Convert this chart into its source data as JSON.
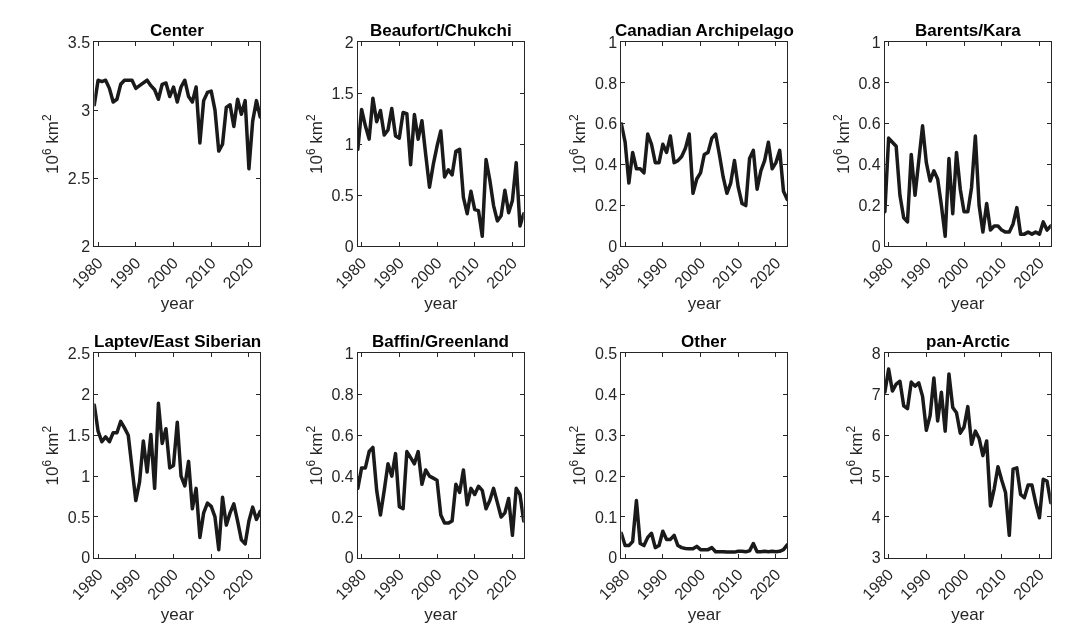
{
  "chart_data": [
    {
      "type": "line",
      "title": "Center",
      "xlabel": "year",
      "ylabel": "10$^{6}$ km$^{2}$",
      "color": "#1a1a1a",
      "xlim": [
        1979,
        2023
      ],
      "xticks": [
        1980,
        1990,
        2000,
        2010,
        2020
      ],
      "ylim": [
        2,
        3.5
      ],
      "yticks": [
        2,
        2.5,
        3,
        3.5
      ],
      "grid": false,
      "x": [
        1979,
        1980,
        1981,
        1982,
        1983,
        1984,
        1985,
        1986,
        1987,
        1988,
        1989,
        1990,
        1991,
        1992,
        1993,
        1994,
        1995,
        1996,
        1997,
        1998,
        1999,
        2000,
        2001,
        2002,
        2003,
        2004,
        2005,
        2006,
        2007,
        2008,
        2009,
        2010,
        2011,
        2012,
        2013,
        2014,
        2015,
        2016,
        2017,
        2018,
        2019,
        2020,
        2021,
        2022,
        2023
      ],
      "values": [
        3.04,
        3.22,
        3.21,
        3.22,
        3.16,
        3.06,
        3.08,
        3.19,
        3.22,
        3.22,
        3.22,
        3.16,
        3.18,
        3.2,
        3.22,
        3.18,
        3.15,
        3.08,
        3.19,
        3.2,
        3.1,
        3.17,
        3.06,
        3.17,
        3.22,
        3.1,
        3.06,
        3.17,
        2.76,
        3.07,
        3.13,
        3.14,
        3.0,
        2.7,
        2.75,
        3.02,
        3.04,
        2.88,
        3.08,
        2.97,
        3.07,
        2.57,
        2.92,
        3.07,
        2.95
      ]
    },
    {
      "type": "line",
      "title": "Beaufort/Chukchi",
      "xlabel": "year",
      "ylabel": "10$^{6}$ km$^{2}$",
      "color": "#1a1a1a",
      "xlim": [
        1979,
        2023
      ],
      "xticks": [
        1980,
        1990,
        2000,
        2010,
        2020
      ],
      "ylim": [
        0,
        2
      ],
      "yticks": [
        0,
        0.5,
        1,
        1.5,
        2
      ],
      "grid": false,
      "x": [
        1979,
        1980,
        1981,
        1982,
        1983,
        1984,
        1985,
        1986,
        1987,
        1988,
        1989,
        1990,
        1991,
        1992,
        1993,
        1994,
        1995,
        1996,
        1997,
        1998,
        1999,
        2000,
        2001,
        2002,
        2003,
        2004,
        2005,
        2006,
        2007,
        2008,
        2009,
        2010,
        2011,
        2012,
        2013,
        2014,
        2015,
        2016,
        2017,
        2018,
        2019,
        2020,
        2021,
        2022,
        2023
      ],
      "values": [
        0.95,
        1.34,
        1.18,
        1.05,
        1.45,
        1.22,
        1.33,
        1.09,
        1.14,
        1.35,
        1.08,
        1.06,
        1.31,
        1.3,
        0.8,
        1.29,
        1.05,
        1.23,
        0.9,
        0.58,
        0.8,
        0.98,
        1.13,
        0.68,
        0.75,
        0.7,
        0.93,
        0.95,
        0.48,
        0.32,
        0.54,
        0.36,
        0.35,
        0.1,
        0.85,
        0.65,
        0.4,
        0.25,
        0.3,
        0.55,
        0.33,
        0.45,
        0.82,
        0.2,
        0.32
      ]
    },
    {
      "type": "line",
      "title": "Canadian Archipelago",
      "xlabel": "year",
      "ylabel": "10$^{6}$ km$^{2}$",
      "color": "#1a1a1a",
      "xlim": [
        1979,
        2023
      ],
      "xticks": [
        1980,
        1990,
        2000,
        2010,
        2020
      ],
      "ylim": [
        0,
        1
      ],
      "yticks": [
        0,
        0.2,
        0.4,
        0.6,
        0.8,
        1
      ],
      "grid": false,
      "x": [
        1979,
        1980,
        1981,
        1982,
        1983,
        1984,
        1985,
        1986,
        1987,
        1988,
        1989,
        1990,
        1991,
        1992,
        1993,
        1994,
        1995,
        1996,
        1997,
        1998,
        1999,
        2000,
        2001,
        2002,
        2003,
        2004,
        2005,
        2006,
        2007,
        2008,
        2009,
        2010,
        2011,
        2012,
        2013,
        2014,
        2015,
        2016,
        2017,
        2018,
        2019,
        2020,
        2021,
        2022,
        2023
      ],
      "values": [
        0.6,
        0.51,
        0.31,
        0.46,
        0.38,
        0.38,
        0.36,
        0.55,
        0.5,
        0.41,
        0.41,
        0.5,
        0.46,
        0.54,
        0.41,
        0.42,
        0.44,
        0.48,
        0.55,
        0.26,
        0.33,
        0.36,
        0.45,
        0.46,
        0.53,
        0.55,
        0.45,
        0.34,
        0.26,
        0.31,
        0.42,
        0.29,
        0.21,
        0.2,
        0.43,
        0.47,
        0.28,
        0.37,
        0.42,
        0.51,
        0.38,
        0.41,
        0.47,
        0.27,
        0.23
      ]
    },
    {
      "type": "line",
      "title": "Barents/Kara",
      "xlabel": "year",
      "ylabel": "10$^{6}$ km$^{2}$",
      "color": "#1a1a1a",
      "xlim": [
        1979,
        2023
      ],
      "xticks": [
        1980,
        1990,
        2000,
        2010,
        2020
      ],
      "ylim": [
        0,
        1
      ],
      "yticks": [
        0,
        0.2,
        0.4,
        0.6,
        0.8,
        1
      ],
      "grid": false,
      "x": [
        1979,
        1980,
        1981,
        1982,
        1983,
        1984,
        1985,
        1986,
        1987,
        1988,
        1989,
        1990,
        1991,
        1992,
        1993,
        1994,
        1995,
        1996,
        1997,
        1998,
        1999,
        2000,
        2001,
        2002,
        2003,
        2004,
        2005,
        2006,
        2007,
        2008,
        2009,
        2010,
        2011,
        2012,
        2013,
        2014,
        2015,
        2016,
        2017,
        2018,
        2019,
        2020,
        2021,
        2022,
        2023
      ],
      "values": [
        0.17,
        0.53,
        0.51,
        0.49,
        0.25,
        0.14,
        0.12,
        0.45,
        0.25,
        0.42,
        0.59,
        0.41,
        0.32,
        0.37,
        0.33,
        0.2,
        0.05,
        0.43,
        0.16,
        0.46,
        0.28,
        0.17,
        0.17,
        0.29,
        0.54,
        0.2,
        0.07,
        0.21,
        0.08,
        0.1,
        0.1,
        0.08,
        0.07,
        0.07,
        0.11,
        0.19,
        0.06,
        0.06,
        0.07,
        0.06,
        0.07,
        0.06,
        0.12,
        0.08,
        0.1
      ]
    },
    {
      "type": "line",
      "title": "Laptev/East Siberian",
      "xlabel": "year",
      "ylabel": "10$^{6}$ km$^{2}$",
      "color": "#1a1a1a",
      "xlim": [
        1979,
        2023
      ],
      "xticks": [
        1980,
        1990,
        2000,
        2010,
        2020
      ],
      "ylim": [
        0,
        2.5
      ],
      "yticks": [
        0,
        0.5,
        1,
        1.5,
        2,
        2.5
      ],
      "grid": false,
      "x": [
        1979,
        1980,
        1981,
        1982,
        1983,
        1984,
        1985,
        1986,
        1987,
        1988,
        1989,
        1990,
        1991,
        1992,
        1993,
        1994,
        1995,
        1996,
        1997,
        1998,
        1999,
        2000,
        2001,
        2002,
        2003,
        2004,
        2005,
        2006,
        2007,
        2008,
        2009,
        2010,
        2011,
        2012,
        2013,
        2014,
        2015,
        2016,
        2017,
        2018,
        2019,
        2020,
        2021,
        2022,
        2023
      ],
      "values": [
        1.87,
        1.55,
        1.42,
        1.48,
        1.42,
        1.53,
        1.53,
        1.67,
        1.59,
        1.5,
        1.1,
        0.7,
        0.93,
        1.43,
        1.05,
        1.51,
        0.85,
        1.89,
        1.4,
        1.58,
        1.1,
        1.13,
        1.66,
        1.0,
        0.88,
        1.18,
        0.6,
        0.85,
        0.25,
        0.55,
        0.67,
        0.63,
        0.5,
        0.1,
        0.74,
        0.4,
        0.55,
        0.66,
        0.45,
        0.22,
        0.17,
        0.45,
        0.62,
        0.47,
        0.57
      ]
    },
    {
      "type": "line",
      "title": "Baffin/Greenland",
      "xlabel": "year",
      "ylabel": "10$^{6}$ km$^{2}$",
      "color": "#1a1a1a",
      "xlim": [
        1979,
        2023
      ],
      "xticks": [
        1980,
        1990,
        2000,
        2010,
        2020
      ],
      "ylim": [
        0,
        1
      ],
      "yticks": [
        0,
        0.2,
        0.4,
        0.6,
        0.8,
        1
      ],
      "grid": false,
      "x": [
        1979,
        1980,
        1981,
        1982,
        1983,
        1984,
        1985,
        1986,
        1987,
        1988,
        1989,
        1990,
        1991,
        1992,
        1993,
        1994,
        1995,
        1996,
        1997,
        1998,
        1999,
        2000,
        2001,
        2002,
        2003,
        2004,
        2005,
        2006,
        2007,
        2008,
        2009,
        2010,
        2011,
        2012,
        2013,
        2014,
        2015,
        2016,
        2017,
        2018,
        2019,
        2020,
        2021,
        2022,
        2023
      ],
      "values": [
        0.34,
        0.44,
        0.44,
        0.52,
        0.54,
        0.33,
        0.21,
        0.33,
        0.46,
        0.4,
        0.51,
        0.25,
        0.24,
        0.52,
        0.49,
        0.46,
        0.52,
        0.36,
        0.43,
        0.4,
        0.39,
        0.38,
        0.21,
        0.17,
        0.17,
        0.18,
        0.36,
        0.32,
        0.43,
        0.26,
        0.34,
        0.31,
        0.35,
        0.33,
        0.24,
        0.28,
        0.34,
        0.27,
        0.2,
        0.22,
        0.29,
        0.11,
        0.34,
        0.31,
        0.18
      ]
    },
    {
      "type": "line",
      "title": "Other",
      "xlabel": "year",
      "ylabel": "10$^{6}$ km$^{2}$",
      "color": "#1a1a1a",
      "xlim": [
        1979,
        2023
      ],
      "xticks": [
        1980,
        1990,
        2000,
        2010,
        2020
      ],
      "ylim": [
        0,
        0.5
      ],
      "yticks": [
        0,
        0.1,
        0.2,
        0.3,
        0.4,
        0.5
      ],
      "grid": false,
      "x": [
        1979,
        1980,
        1981,
        1982,
        1983,
        1984,
        1985,
        1986,
        1987,
        1988,
        1989,
        1990,
        1991,
        1992,
        1993,
        1994,
        1995,
        1996,
        1997,
        1998,
        1999,
        2000,
        2001,
        2002,
        2003,
        2004,
        2005,
        2006,
        2007,
        2008,
        2009,
        2010,
        2011,
        2012,
        2013,
        2014,
        2015,
        2016,
        2017,
        2018,
        2019,
        2020,
        2021,
        2022,
        2023
      ],
      "values": [
        0.06,
        0.03,
        0.03,
        0.04,
        0.14,
        0.035,
        0.03,
        0.05,
        0.06,
        0.025,
        0.03,
        0.065,
        0.045,
        0.045,
        0.055,
        0.03,
        0.025,
        0.023,
        0.022,
        0.022,
        0.028,
        0.02,
        0.02,
        0.02,
        0.025,
        0.015,
        0.015,
        0.015,
        0.014,
        0.014,
        0.014,
        0.016,
        0.016,
        0.015,
        0.017,
        0.035,
        0.015,
        0.015,
        0.016,
        0.015,
        0.016,
        0.015,
        0.016,
        0.02,
        0.032
      ]
    },
    {
      "type": "line",
      "title": "pan-Arctic",
      "xlabel": "year",
      "ylabel": "10$^{6}$ km$^{2}$",
      "color": "#1a1a1a",
      "xlim": [
        1979,
        2023
      ],
      "xticks": [
        1980,
        1990,
        2000,
        2010,
        2020
      ],
      "ylim": [
        3,
        8
      ],
      "yticks": [
        3,
        4,
        5,
        6,
        7,
        8
      ],
      "grid": false,
      "x": [
        1979,
        1980,
        1981,
        1982,
        1983,
        1984,
        1985,
        1986,
        1987,
        1988,
        1989,
        1990,
        1991,
        1992,
        1993,
        1994,
        1995,
        1996,
        1997,
        1998,
        1999,
        2000,
        2001,
        2002,
        2003,
        2004,
        2005,
        2006,
        2007,
        2008,
        2009,
        2010,
        2011,
        2012,
        2013,
        2014,
        2015,
        2016,
        2017,
        2018,
        2019,
        2020,
        2021,
        2022,
        2023
      ],
      "values": [
        7.05,
        7.62,
        7.08,
        7.25,
        7.32,
        6.72,
        6.65,
        7.3,
        7.2,
        7.28,
        6.95,
        6.12,
        6.48,
        7.4,
        6.35,
        7.05,
        6.1,
        7.5,
        6.68,
        6.55,
        6.05,
        6.2,
        6.7,
        5.78,
        6.1,
        5.92,
        5.5,
        5.86,
        4.27,
        4.69,
        5.23,
        4.9,
        4.6,
        3.55,
        5.17,
        5.2,
        4.55,
        4.47,
        4.78,
        4.78,
        4.35,
        3.98,
        4.92,
        4.88,
        4.35
      ]
    }
  ]
}
